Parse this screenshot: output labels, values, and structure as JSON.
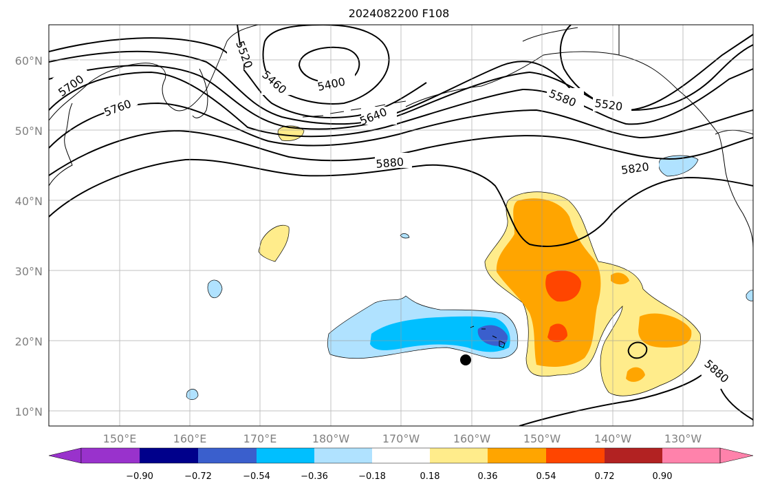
{
  "title": "2024082200 F108",
  "lat_labels": [
    "60°N",
    "50°N",
    "40°N",
    "30°N",
    "20°N",
    "10°N"
  ],
  "lon_labels": [
    "150°E",
    "160°E",
    "170°E",
    "180°W",
    "170°W",
    "160°W",
    "150°W",
    "140°W",
    "130°W"
  ],
  "contour_labels": [
    "5700",
    "5760",
    "5520",
    "5460",
    "5400",
    "5640",
    "5880",
    "5580",
    "5520",
    "5820",
    "5880"
  ],
  "colorbar": {
    "ticks": [
      "−0.90",
      "−0.72",
      "−0.54",
      "−0.36",
      "−0.18",
      "0.18",
      "0.36",
      "0.54",
      "0.72",
      "0.90"
    ],
    "colors": [
      "#9932cc",
      "#00008b",
      "#3a5fcd",
      "#00bfff",
      "#b0e2ff",
      "#ffffff",
      "#ffec8b",
      "#ffa500",
      "#ff4500",
      "#b22222",
      "#ff82ab"
    ]
  }
}
